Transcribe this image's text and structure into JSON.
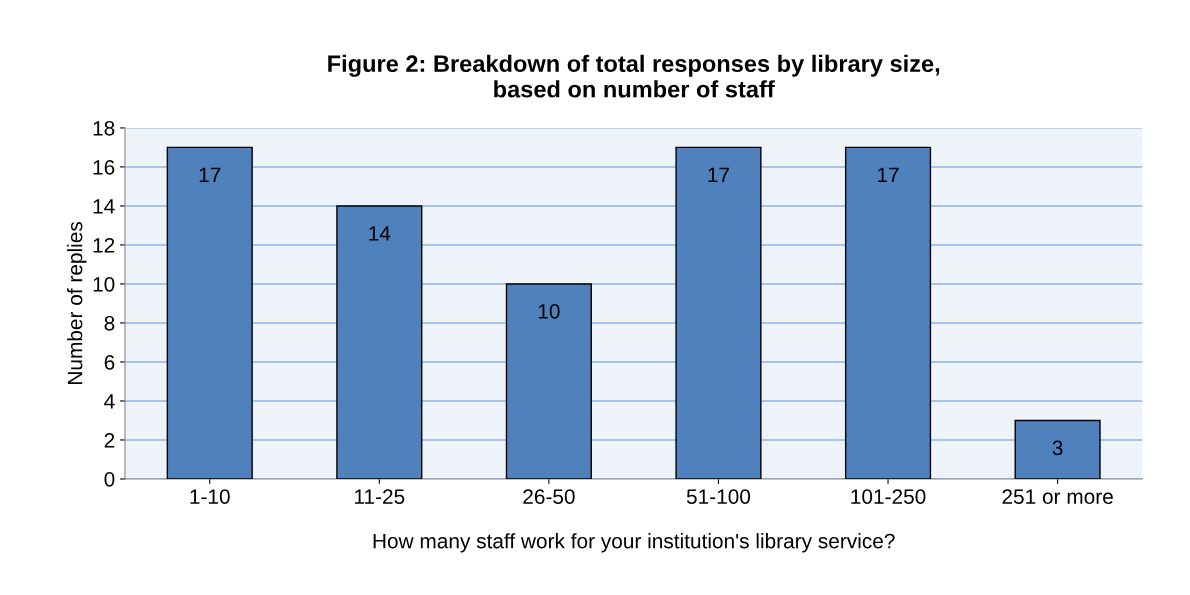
{
  "chart_data": {
    "type": "bar",
    "title": "Figure 2: Breakdown of total responses by library size,\nbased on number of staff",
    "xlabel": "How many staff work for your institution's library service?",
    "ylabel": "Number of replies",
    "categories": [
      "1-10",
      "11-25",
      "26-50",
      "51-100",
      "101-250",
      "251 or more"
    ],
    "values": [
      17,
      14,
      10,
      17,
      17,
      3
    ],
    "color": "#4f81bd",
    "ylim": [
      0,
      18
    ],
    "yticks": [
      0,
      2,
      4,
      6,
      8,
      10,
      12,
      14,
      16,
      18
    ],
    "grid": "y",
    "data_labels": true,
    "legend": false
  }
}
